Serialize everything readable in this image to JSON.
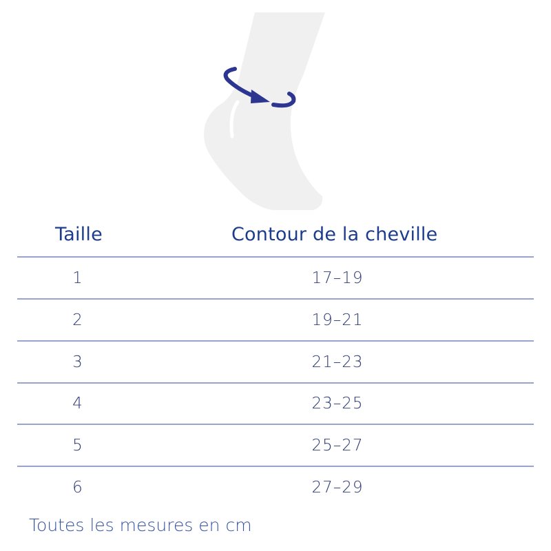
{
  "illustration": {
    "icon": "ankle-circumference-icon",
    "accent_color": "#2c3590",
    "foot_color": "#f0f0f1"
  },
  "table": {
    "headers": {
      "size": "Taille",
      "measure": "Contour de la cheville"
    },
    "rows": [
      {
        "size": "1",
        "range": "17–19"
      },
      {
        "size": "2",
        "range": "19–21"
      },
      {
        "size": "3",
        "range": "21–23"
      },
      {
        "size": "4",
        "range": "23–25"
      },
      {
        "size": "5",
        "range": "25–27"
      },
      {
        "size": "6",
        "range": "27–29"
      }
    ]
  },
  "footnote": "Toutes les mesures en cm"
}
